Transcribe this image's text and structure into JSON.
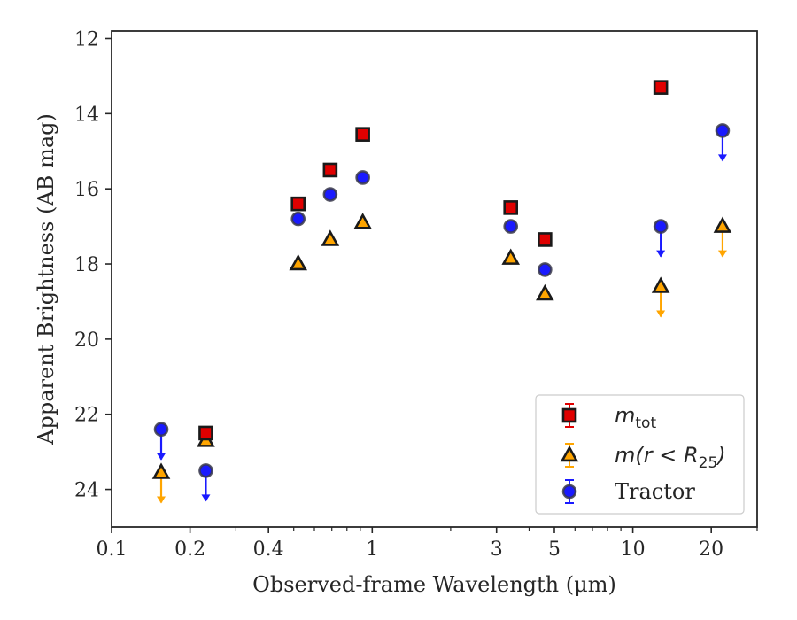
{
  "chart_data": {
    "type": "scatter",
    "xlabel": "Observed-frame Wavelength (μm)",
    "ylabel": "Apparent Brightness (AB mag)",
    "xscale": "log",
    "xlim": [
      0.1,
      30
    ],
    "ylim": [
      25,
      11.8
    ],
    "y_inverted": true,
    "x_ticks": [
      {
        "value": 0.1,
        "label": "0.1"
      },
      {
        "value": 0.2,
        "label": "0.2"
      },
      {
        "value": 0.4,
        "label": "0.4"
      },
      {
        "value": 1,
        "label": "1"
      },
      {
        "value": 3,
        "label": "3"
      },
      {
        "value": 5,
        "label": "5"
      },
      {
        "value": 10,
        "label": "10"
      },
      {
        "value": 20,
        "label": "20"
      }
    ],
    "y_ticks": [
      {
        "value": 12,
        "label": "12"
      },
      {
        "value": 14,
        "label": "14"
      },
      {
        "value": 16,
        "label": "16"
      },
      {
        "value": 18,
        "label": "18"
      },
      {
        "value": 20,
        "label": "20"
      },
      {
        "value": 22,
        "label": "22"
      },
      {
        "value": 24,
        "label": "24"
      }
    ],
    "grid": false,
    "legend_position": "lower-right",
    "series": [
      {
        "name": "m_tot",
        "legend_main": "m",
        "legend_sub": "tot",
        "marker": "square",
        "color": "#e00000",
        "points": [
          {
            "x": 0.23,
            "y": 22.5
          },
          {
            "x": 0.52,
            "y": 16.4
          },
          {
            "x": 0.69,
            "y": 15.5
          },
          {
            "x": 0.92,
            "y": 14.55
          },
          {
            "x": 3.4,
            "y": 16.5
          },
          {
            "x": 4.6,
            "y": 17.35
          },
          {
            "x": 12.8,
            "y": 13.3
          }
        ]
      },
      {
        "name": "m(r < R25)",
        "legend_text": "m(r < R",
        "legend_sub": "25",
        "legend_close": ")",
        "marker": "triangle",
        "color": "#ffa500",
        "points": [
          {
            "x": 0.155,
            "y": 23.55,
            "upper_limit": true
          },
          {
            "x": 0.23,
            "y": 22.7
          },
          {
            "x": 0.52,
            "y": 18.0
          },
          {
            "x": 0.69,
            "y": 17.35
          },
          {
            "x": 0.92,
            "y": 16.9
          },
          {
            "x": 3.4,
            "y": 17.85
          },
          {
            "x": 4.6,
            "y": 18.8
          },
          {
            "x": 12.8,
            "y": 18.6,
            "upper_limit": true
          },
          {
            "x": 22.1,
            "y": 17.0,
            "upper_limit": true
          }
        ]
      },
      {
        "name": "Tractor",
        "legend_text": "Tractor",
        "marker": "circle",
        "color": "#1a1aff",
        "points": [
          {
            "x": 0.155,
            "y": 22.4,
            "upper_limit": true
          },
          {
            "x": 0.23,
            "y": 23.5,
            "upper_limit": true
          },
          {
            "x": 0.52,
            "y": 16.8
          },
          {
            "x": 0.69,
            "y": 16.15
          },
          {
            "x": 0.92,
            "y": 15.7
          },
          {
            "x": 3.4,
            "y": 17.0
          },
          {
            "x": 4.6,
            "y": 18.15
          },
          {
            "x": 12.8,
            "y": 17.0,
            "upper_limit": true
          },
          {
            "x": 22.1,
            "y": 14.45,
            "upper_limit": true
          }
        ]
      }
    ]
  }
}
